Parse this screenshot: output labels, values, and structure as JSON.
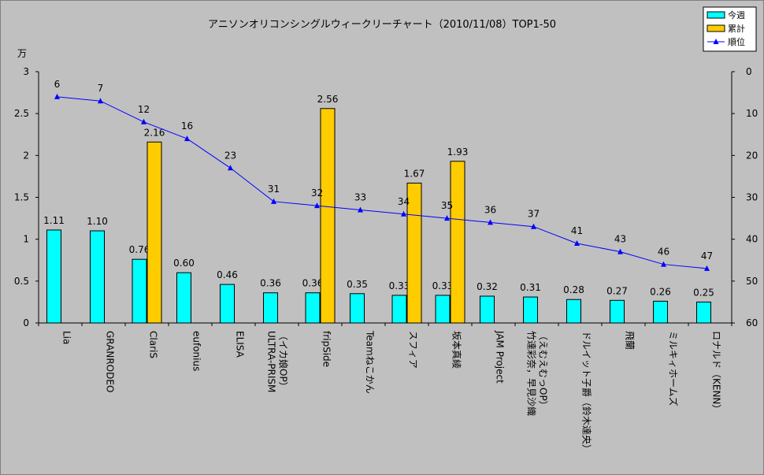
{
  "chart_data": {
    "type": "bar",
    "title": "アニソンオリコンシングルウィークリーチャート（2010/11/08）TOP1-50",
    "ylabel_left": "万",
    "ylim_left": [
      0,
      3
    ],
    "yticks_left": [
      "0",
      "0.5",
      "1",
      "1.5",
      "2",
      "2.5",
      "3"
    ],
    "ylim_right": [
      0,
      60
    ],
    "right_axis_inverted": true,
    "yticks_right": [
      "0",
      "10",
      "20",
      "30",
      "40",
      "50",
      "60"
    ],
    "legend_position": "top-right",
    "grid": false,
    "categories": [
      [
        "Lia"
      ],
      [
        "GRANRODEO"
      ],
      [
        "ClariS"
      ],
      [
        "eufonius"
      ],
      [
        "ELISA"
      ],
      [
        "ULTRA-PRISM",
        "（イカ娘OP）"
      ],
      [
        "fripSide"
      ],
      [
        "Teamねこかん"
      ],
      [
        "スフィア"
      ],
      [
        "坂本真綾"
      ],
      [
        "JAM Project"
      ],
      [
        "竹達彩奈，早見沙織",
        "（えむえむっOP）"
      ],
      [
        "ドルイット子爵（鈴木達央）"
      ],
      [
        "飛蘭"
      ],
      [
        "ミルキィホームズ"
      ],
      [
        "ロナルド（KENN）"
      ]
    ],
    "series": [
      {
        "name": "今週",
        "type": "bar",
        "axis": "left",
        "color": "#00ffff",
        "values": [
          1.11,
          1.1,
          0.76,
          0.6,
          0.46,
          0.36,
          0.36,
          0.35,
          0.33,
          0.33,
          0.32,
          0.31,
          0.28,
          0.27,
          0.26,
          0.25
        ],
        "labels": [
          "1.11",
          "1.10",
          "0.76",
          "0.60",
          "0.46",
          "0.36",
          "0.36",
          "0.35",
          "0.33",
          "0.33",
          "0.32",
          "0.31",
          "0.28",
          "0.27",
          "0.26",
          "0.25"
        ]
      },
      {
        "name": "累計",
        "type": "bar",
        "axis": "left",
        "color": "#ffcc00",
        "values": [
          null,
          null,
          2.16,
          null,
          null,
          null,
          2.56,
          null,
          1.67,
          1.93,
          null,
          null,
          null,
          null,
          null,
          null
        ],
        "labels": [
          null,
          null,
          "2.16",
          null,
          null,
          null,
          "2.56",
          null,
          "1.67",
          "1.93",
          null,
          null,
          null,
          null,
          null,
          null
        ]
      },
      {
        "name": "順位",
        "type": "line",
        "axis": "right",
        "color": "#0000ff",
        "values": [
          6,
          7,
          12,
          16,
          23,
          31,
          32,
          33,
          34,
          35,
          36,
          37,
          41,
          43,
          46,
          47
        ],
        "labels": [
          "6",
          "7",
          "12",
          "16",
          "23",
          "31",
          "32",
          "33",
          "34",
          "35",
          "36",
          "37",
          "41",
          "43",
          "46",
          "47"
        ]
      }
    ]
  }
}
